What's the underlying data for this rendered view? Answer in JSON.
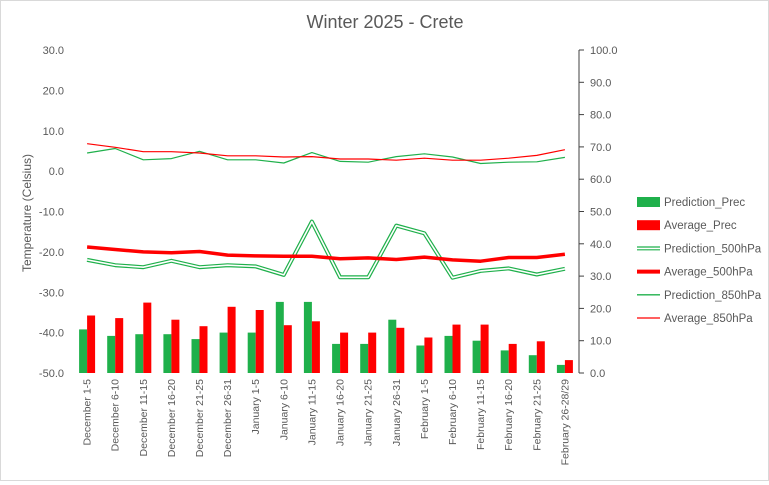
{
  "chart_data": {
    "type": "bar",
    "title": "Winter 2025 - Crete",
    "ylabel": "Temperature (Celsius)",
    "y2label": "",
    "ylim": [
      -50,
      30
    ],
    "y_ticks": [
      "-50.0",
      "-40.0",
      "-30.0",
      "-20.0",
      "-10.0",
      "0.0",
      "10.0",
      "20.0",
      "30.0"
    ],
    "y2lim": [
      0,
      100
    ],
    "y2_ticks": [
      "0.0",
      "10.0",
      "20.0",
      "30.0",
      "40.0",
      "50.0",
      "60.0",
      "70.0",
      "80.0",
      "90.0",
      "100.0"
    ],
    "grid": false,
    "legend_position": "right",
    "categories": [
      "December 1-5",
      "December 6-10",
      "December 11-15",
      "December 16-20",
      "December 21-25",
      "December 26-31",
      "January 1-5",
      "January 6-10",
      "January 11-15",
      "January 16-20",
      "January 21-25",
      "January 26-31",
      "February 1-5",
      "February 6-10",
      "February 11-15",
      "February 16-20",
      "February 21-25",
      "February 26-28/29"
    ],
    "series": [
      {
        "name": "Prediction_Prec",
        "kind": "bar",
        "axis": "right",
        "color": "#1fb04b",
        "values": [
          13.5,
          11.5,
          12.0,
          12.0,
          10.5,
          12.5,
          12.5,
          22.0,
          22.0,
          9.0,
          9.0,
          16.5,
          8.5,
          11.5,
          10.0,
          7.0,
          5.5,
          2.5
        ]
      },
      {
        "name": "Average_Prec",
        "kind": "bar",
        "axis": "right",
        "color": "#ff0000",
        "values": [
          17.8,
          17.0,
          21.8,
          16.5,
          14.5,
          20.5,
          19.5,
          14.8,
          16.0,
          12.5,
          12.5,
          14.0,
          11.0,
          15.0,
          15.0,
          9.0,
          9.8,
          4.0
        ]
      },
      {
        "name": "Prediction_500hPa",
        "kind": "line",
        "style": "double",
        "axis": "left",
        "color": "#1fb04b",
        "values": [
          -22.0,
          -23.3,
          -23.8,
          -22.2,
          -23.8,
          -23.3,
          -23.6,
          -25.7,
          -12.5,
          -26.3,
          -26.3,
          -13.5,
          -15.4,
          -26.4,
          -24.7,
          -24.1,
          -25.6,
          -24.2
        ]
      },
      {
        "name": "Average_500hPa",
        "kind": "line",
        "style": "thick",
        "axis": "left",
        "color": "#ff0000",
        "values": [
          -18.8,
          -19.4,
          -20.0,
          -20.2,
          -19.9,
          -20.8,
          -21.0,
          -21.1,
          -21.1,
          -21.7,
          -21.5,
          -21.9,
          -21.3,
          -22.0,
          -22.3,
          -21.4,
          -21.4,
          -20.6
        ]
      },
      {
        "name": "Prediction_850hPa",
        "kind": "line",
        "style": "thin",
        "axis": "left",
        "color": "#1fb04b",
        "values": [
          4.5,
          5.6,
          2.8,
          3.1,
          4.9,
          2.8,
          2.8,
          2.0,
          4.6,
          2.4,
          2.2,
          3.6,
          4.3,
          3.5,
          1.9,
          2.2,
          2.3,
          3.4
        ]
      },
      {
        "name": "Average_850hPa",
        "kind": "line",
        "style": "thin",
        "axis": "left",
        "color": "#ff0000",
        "values": [
          6.8,
          5.9,
          4.8,
          4.8,
          4.5,
          3.8,
          3.8,
          3.5,
          3.6,
          3.0,
          3.0,
          2.7,
          3.2,
          2.7,
          2.7,
          3.2,
          3.9,
          5.3
        ]
      }
    ]
  }
}
